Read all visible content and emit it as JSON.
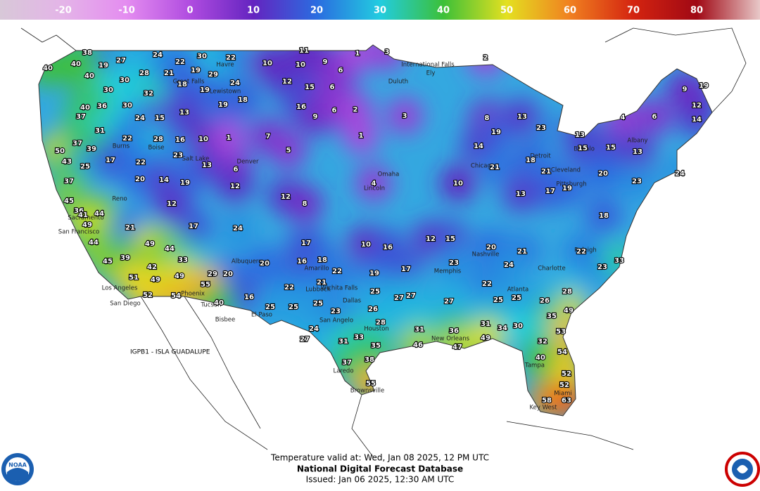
{
  "colorbar": {
    "range": [
      -30,
      90
    ],
    "ticks": [
      -20,
      -10,
      0,
      10,
      20,
      30,
      40,
      50,
      60,
      70,
      80
    ],
    "colors": [
      "#d8c8d8",
      "#e4b4e8",
      "#e48cf0",
      "#b04ce0",
      "#6424c0",
      "#2a6ce0",
      "#22cce0",
      "#3cc038",
      "#e4e020",
      "#f08020",
      "#d42410",
      "#a00814",
      "#e8c8c8"
    ]
  },
  "stations": [
    38,
    27,
    24,
    30,
    22,
    11,
    40,
    40,
    19,
    40,
    10,
    10,
    9,
    6,
    1,
    3,
    2,
    30,
    30,
    28,
    21,
    22,
    19,
    29,
    18,
    32,
    19,
    24,
    12,
    15,
    6,
    40,
    36,
    30,
    24,
    15,
    13,
    19,
    18,
    16,
    9,
    6,
    2,
    3,
    8,
    37,
    31,
    22,
    28,
    16,
    10,
    1,
    7,
    1,
    19,
    23,
    13,
    15,
    15,
    13,
    14,
    50,
    37,
    39,
    43,
    25,
    17,
    22,
    23,
    13,
    6,
    5,
    14,
    21,
    18,
    21,
    20,
    23,
    24,
    37,
    45,
    36,
    41,
    44,
    20,
    14,
    19,
    12,
    12,
    8,
    4,
    10,
    13,
    17,
    19,
    18,
    49,
    21,
    12,
    17,
    24,
    17,
    10,
    16,
    12,
    15,
    20,
    21,
    22,
    23,
    33,
    44,
    49,
    44,
    33,
    42,
    20,
    16,
    18,
    22,
    19,
    17,
    23,
    24,
    45,
    39,
    51,
    49,
    49,
    29,
    20,
    22,
    21,
    25,
    27,
    27,
    22,
    25,
    52,
    54,
    55,
    40,
    16,
    25,
    25,
    25,
    23,
    26,
    27,
    25,
    26,
    28,
    49,
    24,
    28,
    31,
    36,
    31,
    34,
    30,
    35,
    53,
    27,
    31,
    33,
    35,
    46,
    47,
    49,
    32,
    54,
    37,
    38,
    40,
    52,
    52,
    55,
    58,
    63,
    19,
    12,
    9,
    4,
    6,
    13
  ],
  "places": [
    "Havre",
    "Great Falls",
    "Lewistown",
    "Boise",
    "Burns",
    "Salt Lake",
    "Reno",
    "Sacramento",
    "San Francisco",
    "Los Angeles",
    "San Diego",
    "Phoenix",
    "Tucson",
    "El Paso",
    "Albuquerque",
    "Amarillo",
    "Lubbock",
    "Wichita Falls",
    "Dallas",
    "San Angelo",
    "Houston",
    "Brownsville",
    "New Orleans",
    "Memphis",
    "Nashville",
    "Atlanta",
    "Charlotte",
    "Raleigh",
    "Tampa",
    "Miami",
    "Key West",
    "Chicago",
    "Detroit",
    "Cleveland",
    "Buffalo",
    "Albany",
    "Pittsburgh",
    "Denver",
    "Lincoln",
    "Omaha",
    "International Falls",
    "Duluth",
    "Ely",
    "Bisbee",
    "Laredo"
  ],
  "island_label": "IGPB1 - ISLA GUADALUPE",
  "footer": {
    "valid": "Temperature valid at: Wed, Jan 08 2025, 12 PM UTC",
    "title": "National Digital Forecast Database",
    "issued": "Issued: Jan 06 2025, 12:30 AM UTC"
  },
  "logo": "NOAA"
}
